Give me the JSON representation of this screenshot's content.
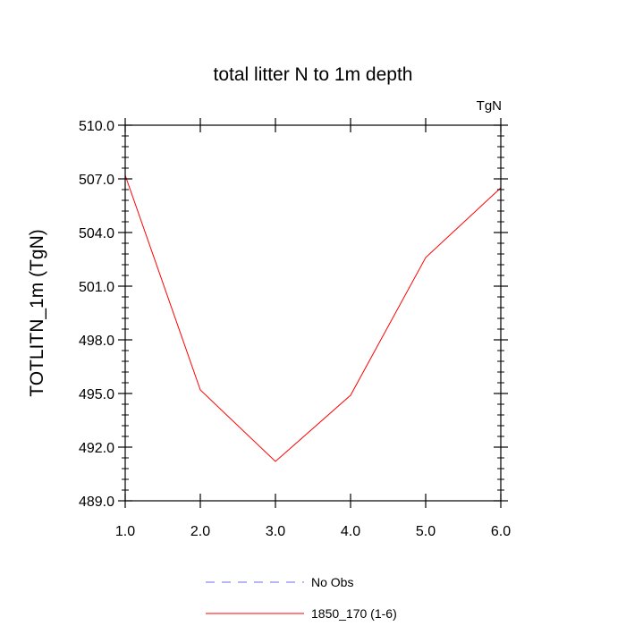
{
  "chart_data": {
    "type": "line",
    "title": "total litter N to 1m depth",
    "units_label": "TgN",
    "xlabel": "",
    "ylabel": "TOTLITN_1m  (TgN)",
    "xlim": [
      1.0,
      6.0
    ],
    "ylim": [
      489.0,
      510.0
    ],
    "x_ticks": [
      1.0,
      2.0,
      3.0,
      4.0,
      5.0,
      6.0
    ],
    "x_tick_labels": [
      "1.0",
      "2.0",
      "3.0",
      "4.0",
      "5.0",
      "6.0"
    ],
    "y_ticks": [
      489.0,
      492.0,
      495.0,
      498.0,
      501.0,
      504.0,
      507.0,
      510.0
    ],
    "y_tick_labels": [
      "489.0",
      "492.0",
      "495.0",
      "498.0",
      "501.0",
      "504.0",
      "507.0",
      "510.0"
    ],
    "grid": false,
    "legend_position": "bottom-center",
    "series": [
      {
        "name": "No Obs",
        "color": "#6f6fe8",
        "style": "dashed",
        "x": [],
        "values": []
      },
      {
        "name": "1850_170 (1-6)",
        "color": "#ff0000",
        "style": "solid",
        "x": [
          1.0,
          2.0,
          3.0,
          4.0,
          5.0,
          6.0
        ],
        "values": [
          507.2,
          495.2,
          491.2,
          494.9,
          502.6,
          506.5
        ]
      }
    ]
  }
}
